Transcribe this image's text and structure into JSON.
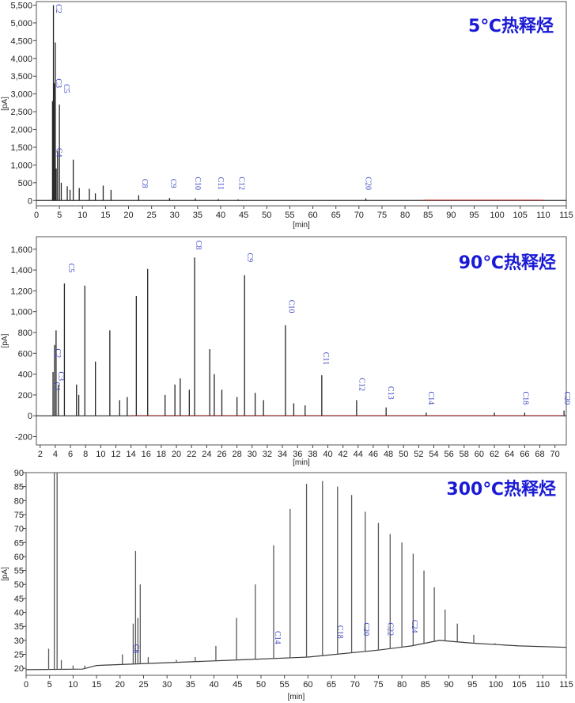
{
  "chart_data": [
    {
      "type": "line",
      "panel_label": "5℃热释烃",
      "xlabel": "[min]",
      "ylabel": "[pA]",
      "xlim": [
        0,
        115
      ],
      "ylim": [
        -150,
        5600
      ],
      "xticks": [
        0,
        5,
        10,
        15,
        20,
        25,
        30,
        35,
        40,
        45,
        50,
        55,
        60,
        65,
        70,
        75,
        80,
        85,
        90,
        95,
        100,
        105,
        110,
        115
      ],
      "yticks": [
        0,
        500,
        1000,
        1500,
        2000,
        2500,
        3000,
        3500,
        4000,
        4500,
        5000,
        5500
      ],
      "ytick_labels": [
        "0",
        "500",
        "1,000",
        "1,500",
        "2,000",
        "2,500",
        "3,000",
        "3,500",
        "4,000",
        "4,500",
        "5,000",
        "5,500"
      ],
      "baseline": 0,
      "peaks": [
        {
          "x": 3.5,
          "y": 2800
        },
        {
          "x": 3.7,
          "y": 5500
        },
        {
          "x": 3.9,
          "y": 3300
        },
        {
          "x": 4.1,
          "y": 4450
        },
        {
          "x": 4.3,
          "y": 900
        },
        {
          "x": 4.6,
          "y": 1400
        },
        {
          "x": 5.0,
          "y": 2700
        },
        {
          "x": 5.4,
          "y": 500
        },
        {
          "x": 6.7,
          "y": 400
        },
        {
          "x": 7.3,
          "y": 300
        },
        {
          "x": 8.0,
          "y": 1150
        },
        {
          "x": 9.3,
          "y": 350
        },
        {
          "x": 11.5,
          "y": 330
        },
        {
          "x": 12.8,
          "y": 200
        },
        {
          "x": 14.5,
          "y": 420
        },
        {
          "x": 16.2,
          "y": 300
        },
        {
          "x": 22.2,
          "y": 150
        },
        {
          "x": 28.9,
          "y": 70
        },
        {
          "x": 34.5,
          "y": 60
        },
        {
          "x": 39.5,
          "y": 40
        },
        {
          "x": 43.8,
          "y": 30
        },
        {
          "x": 71.5,
          "y": 60
        }
      ],
      "peak_labels": [
        {
          "text": "C2",
          "x": 4.3,
          "y": 5400
        },
        {
          "text": "C3",
          "x": 4.3,
          "y": 3300
        },
        {
          "text": "C5",
          "x": 6.0,
          "y": 3150
        },
        {
          "text": "C4",
          "x": 4.4,
          "y": 1350
        },
        {
          "text": "C8",
          "x": 23.0,
          "y": 480
        },
        {
          "text": "C9",
          "x": 29.2,
          "y": 480
        },
        {
          "text": "C10",
          "x": 34.5,
          "y": 480
        },
        {
          "text": "C11",
          "x": 39.5,
          "y": 480
        },
        {
          "text": "C12",
          "x": 44.0,
          "y": 480
        },
        {
          "text": "C20",
          "x": 71.5,
          "y": 480
        }
      ]
    },
    {
      "type": "line",
      "panel_label": "90℃热释烃",
      "xlabel": "[min]",
      "ylabel": "[pA]",
      "xlim": [
        1.5,
        71.5
      ],
      "ylim": [
        -280,
        1720
      ],
      "xticks": [
        2,
        4,
        6,
        8,
        10,
        12,
        14,
        16,
        18,
        20,
        22,
        24,
        26,
        28,
        30,
        32,
        34,
        36,
        38,
        40,
        42,
        44,
        46,
        48,
        50,
        52,
        54,
        56,
        58,
        60,
        62,
        64,
        66,
        68,
        70
      ],
      "yticks": [
        -200,
        0,
        200,
        400,
        600,
        800,
        1000,
        1200,
        1400,
        1600
      ],
      "ytick_labels": [
        "-200",
        "0",
        "200",
        "400",
        "600",
        "800",
        "1,000",
        "1,200",
        "1,400",
        "1,600"
      ],
      "baseline": 0,
      "peaks": [
        {
          "x": 3.7,
          "y": 420
        },
        {
          "x": 3.9,
          "y": 680
        },
        {
          "x": 4.1,
          "y": 820
        },
        {
          "x": 4.4,
          "y": 300
        },
        {
          "x": 5.2,
          "y": 1270
        },
        {
          "x": 6.8,
          "y": 300
        },
        {
          "x": 7.1,
          "y": 200
        },
        {
          "x": 7.9,
          "y": 1250
        },
        {
          "x": 9.3,
          "y": 520
        },
        {
          "x": 11.2,
          "y": 820
        },
        {
          "x": 12.5,
          "y": 150
        },
        {
          "x": 13.5,
          "y": 180
        },
        {
          "x": 14.7,
          "y": 1150
        },
        {
          "x": 16.2,
          "y": 1410
        },
        {
          "x": 18.5,
          "y": 200
        },
        {
          "x": 19.8,
          "y": 300
        },
        {
          "x": 20.5,
          "y": 360
        },
        {
          "x": 21.7,
          "y": 250
        },
        {
          "x": 22.4,
          "y": 1520
        },
        {
          "x": 24.4,
          "y": 640
        },
        {
          "x": 25.0,
          "y": 400
        },
        {
          "x": 26.0,
          "y": 250
        },
        {
          "x": 28.0,
          "y": 180
        },
        {
          "x": 29.0,
          "y": 1350
        },
        {
          "x": 30.4,
          "y": 220
        },
        {
          "x": 31.5,
          "y": 150
        },
        {
          "x": 34.4,
          "y": 870
        },
        {
          "x": 35.5,
          "y": 120
        },
        {
          "x": 37.0,
          "y": 100
        },
        {
          "x": 39.2,
          "y": 390
        },
        {
          "x": 43.8,
          "y": 150
        },
        {
          "x": 47.7,
          "y": 80
        },
        {
          "x": 53.0,
          "y": 30
        },
        {
          "x": 62.0,
          "y": 30
        },
        {
          "x": 66.0,
          "y": 30
        },
        {
          "x": 71.2,
          "y": 50
        }
      ],
      "peak_labels": [
        {
          "text": "C2",
          "x": 4.0,
          "y": 600
        },
        {
          "text": "C1",
          "x": 3.9,
          "y": 280
        },
        {
          "text": "C3",
          "x": 4.4,
          "y": 380
        },
        {
          "text": "C5",
          "x": 5.8,
          "y": 1420
        },
        {
          "text": "C8",
          "x": 22.6,
          "y": 1640
        },
        {
          "text": "C9",
          "x": 29.4,
          "y": 1520
        },
        {
          "text": "C10",
          "x": 34.9,
          "y": 1050
        },
        {
          "text": "C11",
          "x": 39.4,
          "y": 550
        },
        {
          "text": "C12",
          "x": 44.2,
          "y": 300
        },
        {
          "text": "C13",
          "x": 48.0,
          "y": 220
        },
        {
          "text": "C14",
          "x": 53.3,
          "y": 170
        },
        {
          "text": "C18",
          "x": 65.8,
          "y": 170
        },
        {
          "text": "C20",
          "x": 71.3,
          "y": 170
        }
      ]
    },
    {
      "type": "line",
      "panel_label": "300℃热释烃",
      "xlabel": "[min]",
      "ylabel": "[pA]",
      "xlim": [
        0,
        115
      ],
      "ylim": [
        17.5,
        90
      ],
      "xticks": [
        0,
        5,
        10,
        15,
        20,
        25,
        30,
        35,
        40,
        45,
        50,
        55,
        60,
        65,
        70,
        75,
        80,
        85,
        90,
        95,
        100,
        105,
        110,
        115
      ],
      "yticks": [
        20,
        25,
        30,
        35,
        40,
        45,
        50,
        55,
        60,
        65,
        70,
        75,
        80,
        85,
        90
      ],
      "ytick_labels": [
        "20",
        "25",
        "30",
        "35",
        "40",
        "45",
        "50",
        "55",
        "60",
        "65",
        "70",
        "75",
        "80",
        "85",
        "90"
      ],
      "baseline": [
        [
          0,
          19.5
        ],
        [
          12,
          19.7
        ],
        [
          15,
          21.0
        ],
        [
          30,
          22.0
        ],
        [
          45,
          23.0
        ],
        [
          60,
          24.0
        ],
        [
          75,
          26.5
        ],
        [
          82,
          28.0
        ],
        [
          88,
          30.0
        ],
        [
          95,
          29.0
        ],
        [
          105,
          28.0
        ],
        [
          115,
          27.5
        ]
      ],
      "peaks": [
        {
          "x": 4.8,
          "y": 27
        },
        {
          "x": 6.0,
          "y": 90
        },
        {
          "x": 6.6,
          "y": 90
        },
        {
          "x": 7.5,
          "y": 23
        },
        {
          "x": 10.0,
          "y": 21
        },
        {
          "x": 12.5,
          "y": 21
        },
        {
          "x": 20.5,
          "y": 25
        },
        {
          "x": 22.8,
          "y": 36
        },
        {
          "x": 23.3,
          "y": 62
        },
        {
          "x": 23.8,
          "y": 38
        },
        {
          "x": 24.3,
          "y": 50
        },
        {
          "x": 26.0,
          "y": 24
        },
        {
          "x": 32.0,
          "y": 23
        },
        {
          "x": 36.0,
          "y": 24
        },
        {
          "x": 40.4,
          "y": 28
        },
        {
          "x": 44.8,
          "y": 38
        },
        {
          "x": 48.8,
          "y": 50
        },
        {
          "x": 52.7,
          "y": 64
        },
        {
          "x": 56.2,
          "y": 77
        },
        {
          "x": 59.7,
          "y": 86
        },
        {
          "x": 63.1,
          "y": 87
        },
        {
          "x": 66.3,
          "y": 85
        },
        {
          "x": 69.3,
          "y": 82
        },
        {
          "x": 72.2,
          "y": 76
        },
        {
          "x": 75.0,
          "y": 72
        },
        {
          "x": 77.5,
          "y": 68
        },
        {
          "x": 80.0,
          "y": 65
        },
        {
          "x": 82.4,
          "y": 61
        },
        {
          "x": 84.7,
          "y": 55
        },
        {
          "x": 86.9,
          "y": 49
        },
        {
          "x": 89.2,
          "y": 41
        },
        {
          "x": 91.8,
          "y": 36
        },
        {
          "x": 95.3,
          "y": 32
        },
        {
          "x": 99.8,
          "y": 29
        }
      ],
      "peak_labels": [
        {
          "text": "C8",
          "x": 22.9,
          "y": 27
        },
        {
          "text": "C14",
          "x": 53.0,
          "y": 31
        },
        {
          "text": "C18",
          "x": 66.3,
          "y": 33
        },
        {
          "text": "C20",
          "x": 71.9,
          "y": 34
        },
        {
          "text": "C22",
          "x": 77.0,
          "y": 34
        },
        {
          "text": "C24",
          "x": 82.2,
          "y": 35
        }
      ]
    }
  ]
}
